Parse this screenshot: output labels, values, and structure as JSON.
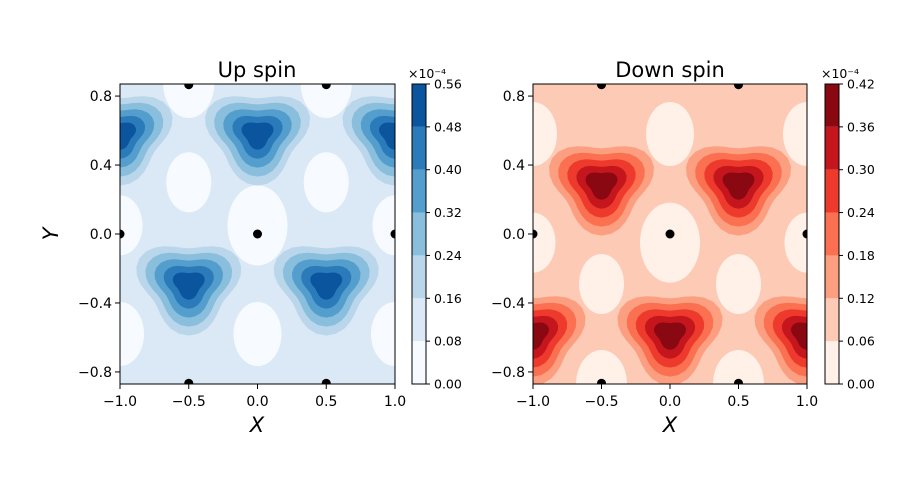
{
  "chart_data": [
    {
      "type": "contour",
      "title": "Up spin",
      "xlabel": "X",
      "ylabel": "Y",
      "xlim": [
        -1.0,
        1.0
      ],
      "ylim": [
        -0.87,
        0.87
      ],
      "xticks": [
        -1.0,
        -0.5,
        0.0,
        0.5,
        1.0
      ],
      "xtick_labels": [
        "−1.0",
        "−0.5",
        "0.0",
        "0.5",
        "1.0"
      ],
      "yticks": [
        0.8,
        0.4,
        0.0,
        -0.4,
        -0.8
      ],
      "ytick_labels": [
        "0.8",
        "0.4",
        "0.0",
        "−0.4",
        "−0.8"
      ],
      "colormap": "Blues",
      "colorbar": {
        "exponent_label": "×10⁻⁴",
        "levels": [
          0.0,
          0.08,
          0.16,
          0.24,
          0.32,
          0.4,
          0.48,
          0.56
        ],
        "tick_labels": [
          "0.00",
          "0.08",
          "0.16",
          "0.24",
          "0.32",
          "0.40",
          "0.48",
          "0.56"
        ],
        "colors": [
          "#f7fbff",
          "#dbe9f6",
          "#bad6eb",
          "#89bedc",
          "#539ecd",
          "#2b7bba",
          "#0b559f"
        ]
      },
      "maxima": [
        {
          "x": -1.0,
          "y": 0.58
        },
        {
          "x": 0.0,
          "y": 0.58
        },
        {
          "x": 1.0,
          "y": 0.58
        },
        {
          "x": -0.5,
          "y": -0.29
        },
        {
          "x": 0.5,
          "y": -0.29
        }
      ],
      "atoms": [
        {
          "x": -0.5,
          "y": 0.866
        },
        {
          "x": 0.5,
          "y": 0.866
        },
        {
          "x": -1.0,
          "y": 0.0
        },
        {
          "x": 0.0,
          "y": 0.0
        },
        {
          "x": 1.0,
          "y": 0.0
        },
        {
          "x": -0.5,
          "y": -0.866
        },
        {
          "x": 0.5,
          "y": -0.866
        }
      ]
    },
    {
      "type": "contour",
      "title": "Down spin",
      "xlabel": "X",
      "ylabel": "",
      "xlim": [
        -1.0,
        1.0
      ],
      "ylim": [
        -0.87,
        0.87
      ],
      "xticks": [
        -1.0,
        -0.5,
        0.0,
        0.5,
        1.0
      ],
      "xtick_labels": [
        "−1.0",
        "−0.5",
        "0.0",
        "0.5",
        "1.0"
      ],
      "yticks": [
        0.8,
        0.4,
        0.0,
        -0.4,
        -0.8
      ],
      "ytick_labels": [
        "0.8",
        "0.4",
        "0.0",
        "−0.4",
        "−0.8"
      ],
      "colormap": "Reds",
      "colorbar": {
        "exponent_label": "×10⁻⁴",
        "levels": [
          0.0,
          0.06,
          0.12,
          0.18,
          0.24,
          0.3,
          0.36,
          0.42
        ],
        "tick_labels": [
          "0.00",
          "0.06",
          "0.12",
          "0.18",
          "0.24",
          "0.30",
          "0.36",
          "0.42"
        ],
        "colors": [
          "#fff0e8",
          "#fdcab5",
          "#fc9f81",
          "#fb7050",
          "#ee3a2c",
          "#c4161c",
          "#8a0812"
        ]
      },
      "maxima": [
        {
          "x": -0.5,
          "y": 0.29
        },
        {
          "x": 0.5,
          "y": 0.29
        },
        {
          "x": -1.0,
          "y": -0.58
        },
        {
          "x": 0.0,
          "y": -0.58
        },
        {
          "x": 1.0,
          "y": -0.58
        }
      ],
      "atoms": [
        {
          "x": -0.5,
          "y": 0.866
        },
        {
          "x": 0.5,
          "y": 0.866
        },
        {
          "x": -1.0,
          "y": 0.0
        },
        {
          "x": 0.0,
          "y": 0.0
        },
        {
          "x": 1.0,
          "y": 0.0
        },
        {
          "x": -0.5,
          "y": -0.866
        },
        {
          "x": 0.5,
          "y": -0.866
        }
      ]
    }
  ]
}
